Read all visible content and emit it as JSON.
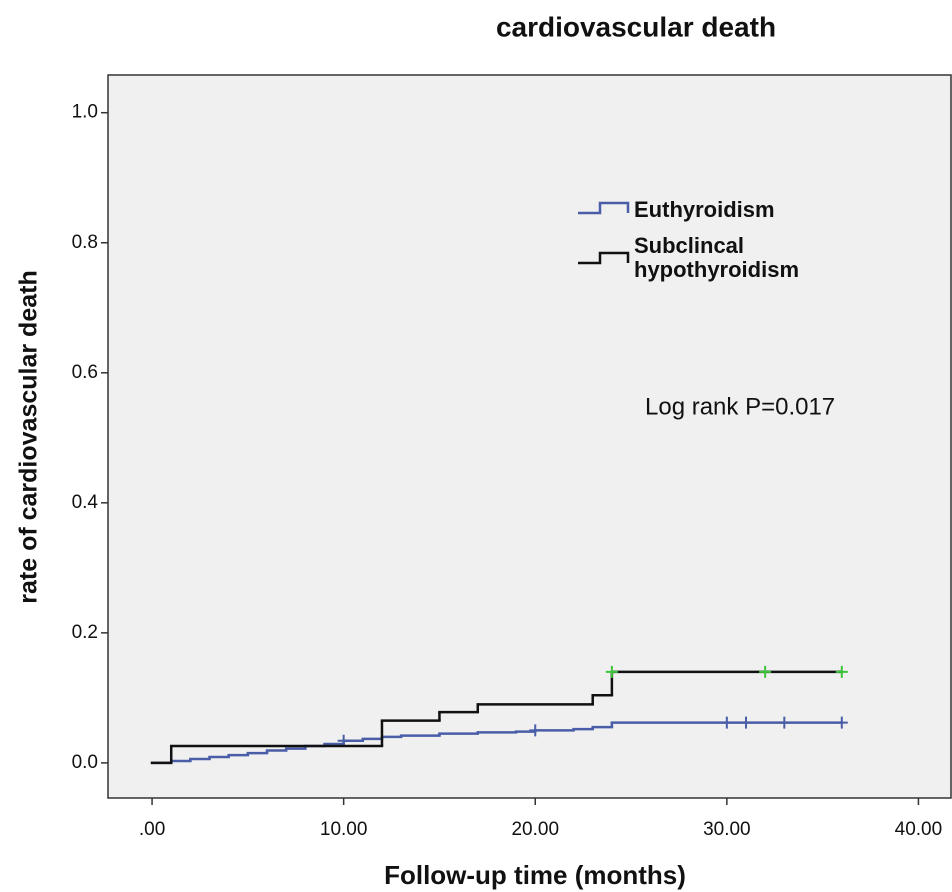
{
  "chart_data": {
    "type": "step",
    "title": "cardiovascular death",
    "x_label": "Follow-up time (months)",
    "y_label": "rate of cardiovascular death",
    "annotation": "Log rank P=0.017",
    "xlim": [
      -2.3,
      41.7
    ],
    "ylim": [
      -0.054,
      1.058
    ],
    "xticks": [
      {
        "value": 0,
        "label": ".00"
      },
      {
        "value": 10,
        "label": "10.00"
      },
      {
        "value": 20,
        "label": "20.00"
      },
      {
        "value": 30,
        "label": "30.00"
      },
      {
        "value": 40,
        "label": "40.00"
      }
    ],
    "yticks": [
      {
        "value": 0,
        "label": "0.0"
      },
      {
        "value": 0.2,
        "label": "0.2"
      },
      {
        "value": 0.4,
        "label": "0.4"
      },
      {
        "value": 0.6,
        "label": "0.6"
      },
      {
        "value": 0.8,
        "label": "0.8"
      },
      {
        "value": 1,
        "label": "1.0"
      }
    ],
    "censor_color": "#3cc43c",
    "series": [
      {
        "name": "Euthyroidism",
        "color": "#4a5ea8",
        "x": [
          0,
          1,
          2,
          3,
          4,
          5,
          6,
          7,
          8,
          9,
          10,
          11,
          12,
          13,
          15,
          17,
          19,
          20,
          22,
          23,
          24,
          36
        ],
        "values": [
          0,
          0.003,
          0.006,
          0.009,
          0.012,
          0.015,
          0.019,
          0.022,
          0.026,
          0.029,
          0.034,
          0.037,
          0.04,
          0.042,
          0.045,
          0.047,
          0.048,
          0.05,
          0.052,
          0.055,
          0.062,
          0.062
        ],
        "censored_x": [
          10,
          20,
          30,
          31,
          33,
          36
        ],
        "censored_values": [
          0.034,
          0.05,
          0.062,
          0.062,
          0.062,
          0.062
        ]
      },
      {
        "name": "Subclincal hypothyroidism",
        "color": "#111111",
        "x": [
          0,
          1,
          12,
          15,
          17,
          23,
          24,
          36
        ],
        "values": [
          0,
          0.026,
          0.065,
          0.078,
          0.09,
          0.104,
          0.14,
          0.14
        ],
        "censored_x": [
          24,
          32,
          36
        ],
        "censored_values": [
          0.14,
          0.14,
          0.14
        ]
      }
    ]
  }
}
